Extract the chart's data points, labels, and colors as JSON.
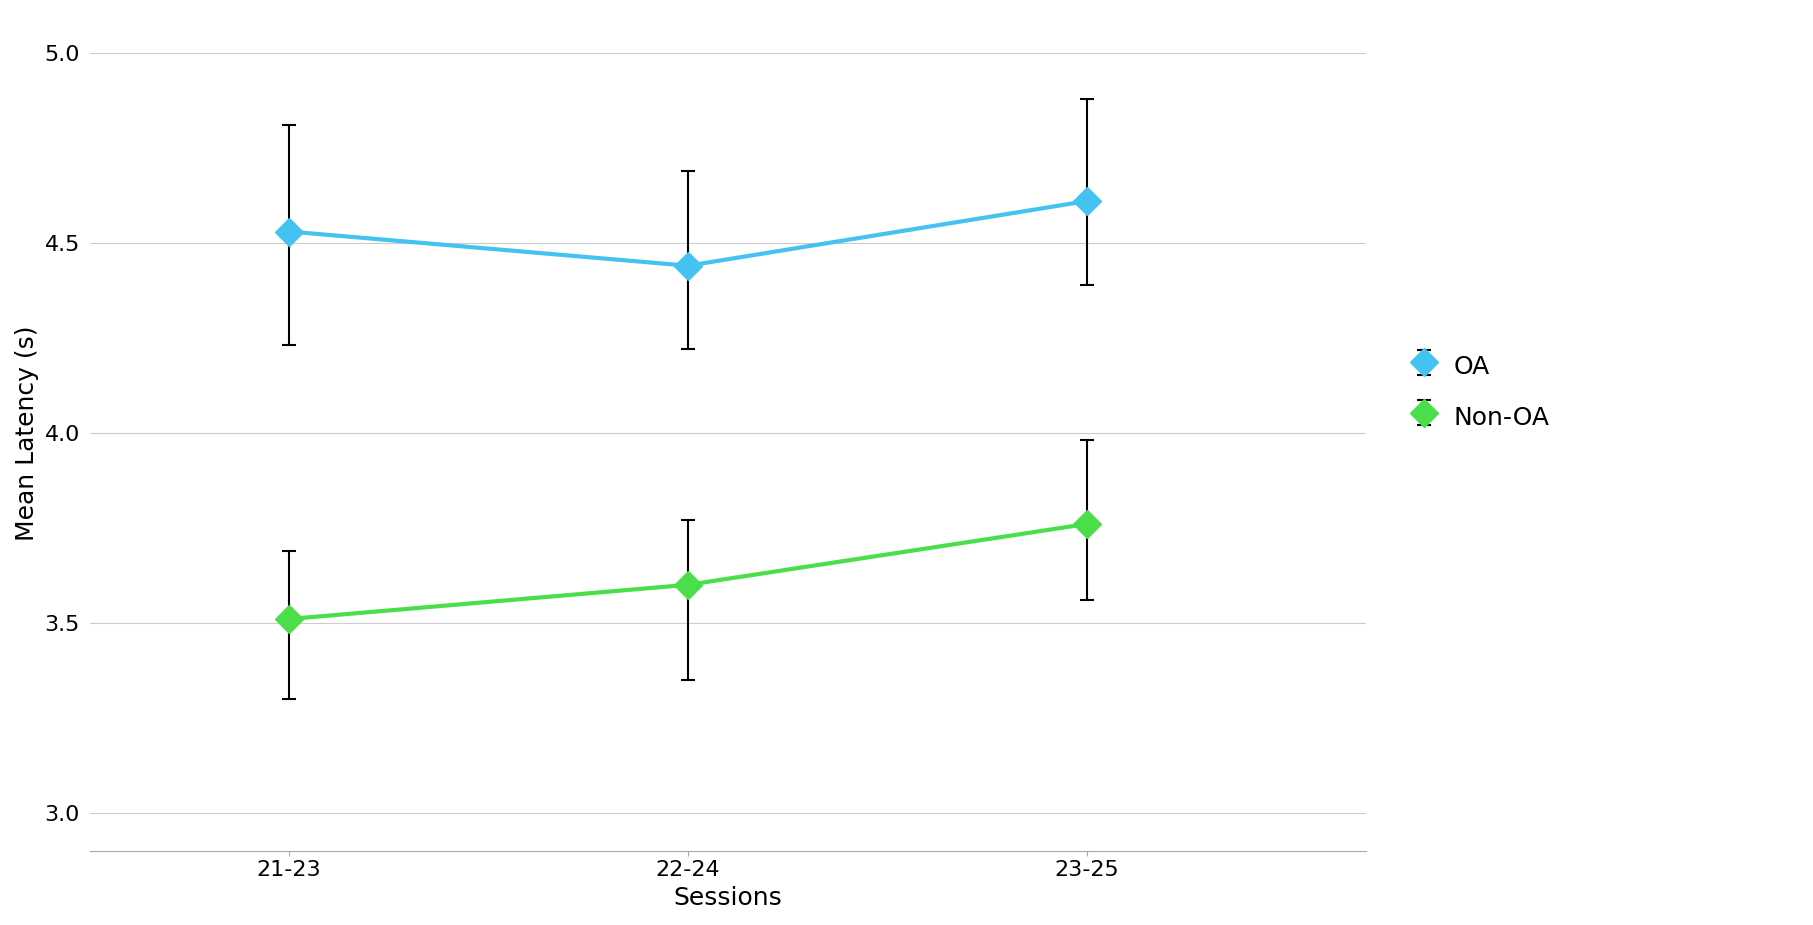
{
  "sessions": [
    "21-23",
    "22-24",
    "23-25"
  ],
  "oa_means": [
    4.53,
    4.44,
    4.61
  ],
  "oa_errors_upper": [
    0.28,
    0.25,
    0.27
  ],
  "oa_errors_lower": [
    0.3,
    0.22,
    0.22
  ],
  "nonoa_means": [
    3.51,
    3.6,
    3.76
  ],
  "nonoa_errors_upper": [
    0.18,
    0.17,
    0.22
  ],
  "nonoa_errors_lower": [
    0.21,
    0.25,
    0.2
  ],
  "oa_color": "#45C3F0",
  "nonoa_color": "#4ADE4A",
  "ylabel": "Mean Latency (s)",
  "xlabel": "Sessions",
  "ylim": [
    2.9,
    5.1
  ],
  "yticks": [
    3.0,
    3.5,
    4.0,
    4.5,
    5.0
  ],
  "legend_labels": [
    "OA",
    "Non-OA"
  ],
  "background_color": "#FFFFFF",
  "grid_color": "#CCCCCC",
  "label_fontsize": 18,
  "tick_fontsize": 16,
  "legend_fontsize": 18,
  "line_width": 3.0,
  "marker_size": 14,
  "cap_size": 5,
  "elinewidth": 1.5,
  "capthick": 1.5
}
